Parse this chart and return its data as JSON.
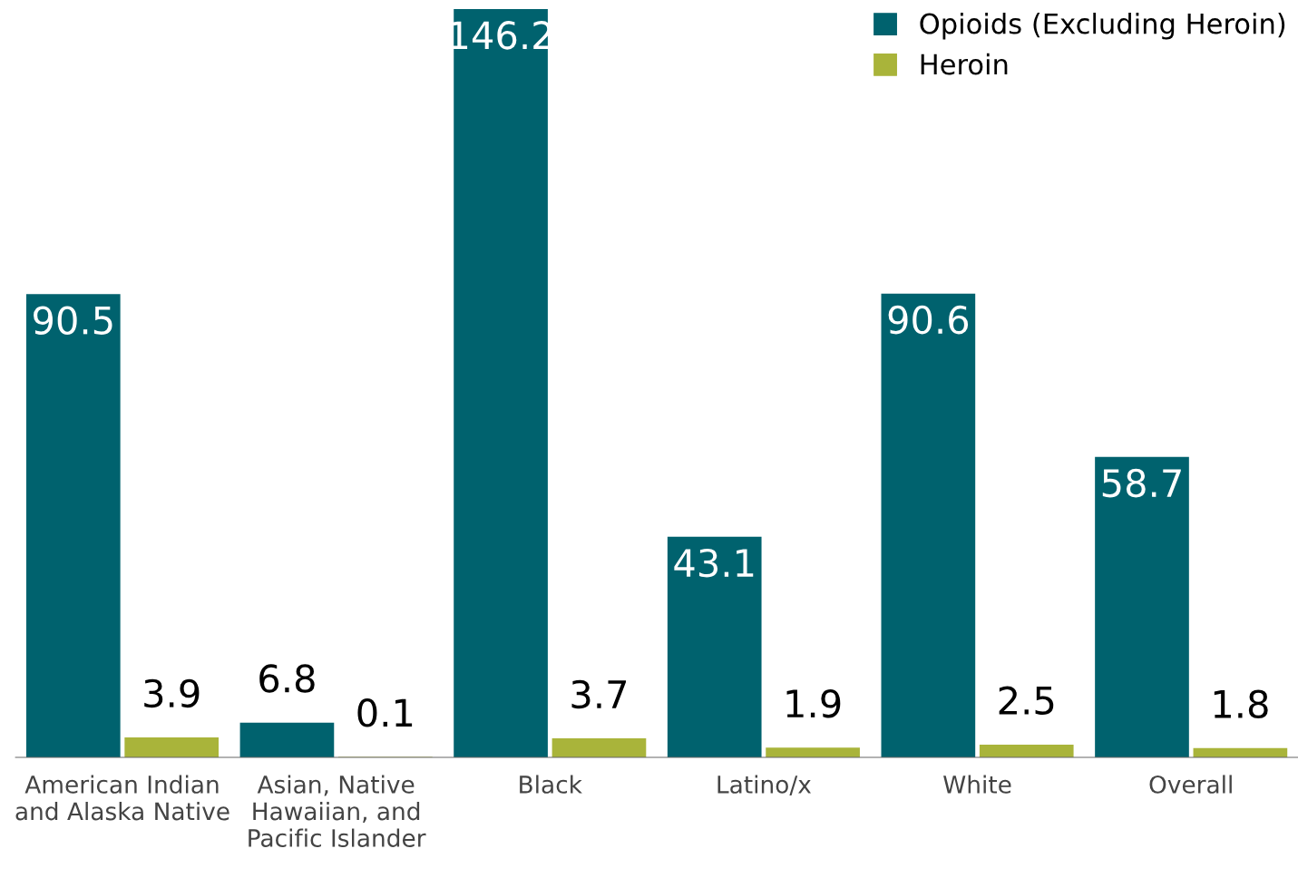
{
  "chart_data": {
    "type": "bar",
    "categories": [
      "American Indian\nand Alaska Native",
      "Asian, Native\nHawaiian, and\nPacific Islander",
      "Black",
      "Latino/x",
      "White",
      "Overall"
    ],
    "series": [
      {
        "name": "Opioids (Excluding Heroin)",
        "color": "#00626e",
        "values": [
          90.5,
          6.8,
          146.2,
          43.1,
          90.6,
          58.7
        ]
      },
      {
        "name": "Heroin",
        "color": "#a9b43a",
        "values": [
          3.9,
          0.1,
          3.7,
          1.9,
          2.5,
          1.8
        ]
      }
    ],
    "data_labels": true,
    "legend": "top right",
    "tick_labels": "x",
    "grid": false
  }
}
